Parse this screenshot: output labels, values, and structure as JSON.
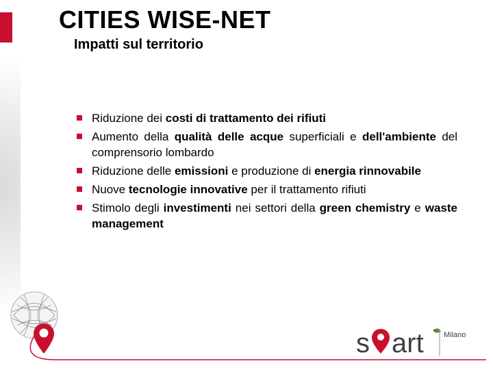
{
  "colors": {
    "brand_red": "#c8102e",
    "brand_green": "#5a8a3a",
    "text": "#000000",
    "bg": "#ffffff",
    "grey": "#777777",
    "light_grey": "#d9d9d9"
  },
  "title": "CITIES WISE-NET",
  "subtitle": "Impatti sul territorio",
  "bullets": [
    {
      "segments": [
        {
          "t": "Riduzione dei ",
          "b": false
        },
        {
          "t": "costi di trattamento dei rifiuti",
          "b": true
        }
      ]
    },
    {
      "segments": [
        {
          "t": "Aumento della ",
          "b": false
        },
        {
          "t": "qualità delle acque",
          "b": true
        },
        {
          "t": " superficiali e ",
          "b": false
        },
        {
          "t": "dell'ambiente",
          "b": true
        },
        {
          "t": " del comprensorio lombardo",
          "b": false
        }
      ]
    },
    {
      "segments": [
        {
          "t": "Riduzione delle ",
          "b": false
        },
        {
          "t": "emissioni",
          "b": true
        },
        {
          "t": " e produzione di ",
          "b": false
        },
        {
          "t": "energia rinnovabile",
          "b": true
        }
      ]
    },
    {
      "segments": [
        {
          "t": "Nuove ",
          "b": false
        },
        {
          "t": "tecnologie innovative",
          "b": true
        },
        {
          "t": " per il trattamento rifiuti",
          "b": false
        }
      ]
    },
    {
      "segments": [
        {
          "t": "Stimolo degli ",
          "b": false
        },
        {
          "t": "investimenti",
          "b": true
        },
        {
          "t": " nei settori della ",
          "b": false
        },
        {
          "t": "green chemistry",
          "b": true
        },
        {
          "t": " e ",
          "b": false
        },
        {
          "t": "waste management",
          "b": true
        }
      ]
    }
  ],
  "logo": {
    "word_pre": "s",
    "word_post": "art",
    "sub": "Milano",
    "pin_color": "#c8102e",
    "text_color": "#404040",
    "leaf_color": "#5a8a3a"
  }
}
